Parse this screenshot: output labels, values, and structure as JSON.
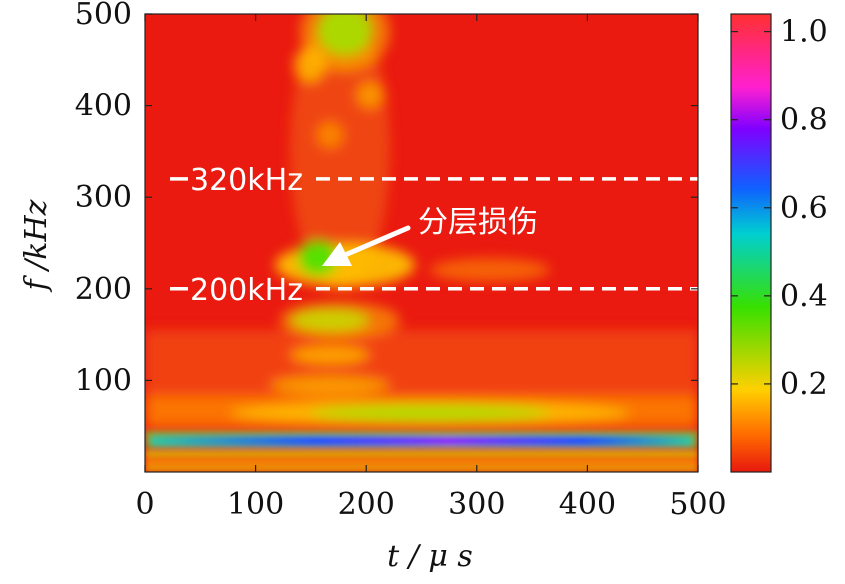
{
  "chart_data": {
    "type": "heatmap",
    "title": "",
    "xlabel": "t / μ s",
    "ylabel": "f /kHz",
    "xlim": [
      0,
      500
    ],
    "ylim": [
      0,
      500
    ],
    "x_ticks": [
      "0",
      "100",
      "200",
      "300",
      "400",
      "500"
    ],
    "y_ticks": [
      "100",
      "200",
      "300",
      "400",
      "500"
    ],
    "colorbar": {
      "range": [
        0,
        1.04
      ],
      "ticks": [
        "0.2",
        "0.4",
        "0.6",
        "0.8",
        "1.0"
      ],
      "colormap": [
        "#e8180e",
        "#ff6a00",
        "#ffd000",
        "#38e000",
        "#00cfd0",
        "#1060ff",
        "#8000ff",
        "#ff20d0",
        "#ff3030"
      ]
    },
    "reference_lines": [
      {
        "value": 320,
        "label": "320kHz"
      },
      {
        "value": 200,
        "label": "200kHz"
      }
    ],
    "annotation": {
      "text": "分层损伤",
      "target_x": 165,
      "target_y": 225
    },
    "grid": false,
    "legend": "none"
  }
}
